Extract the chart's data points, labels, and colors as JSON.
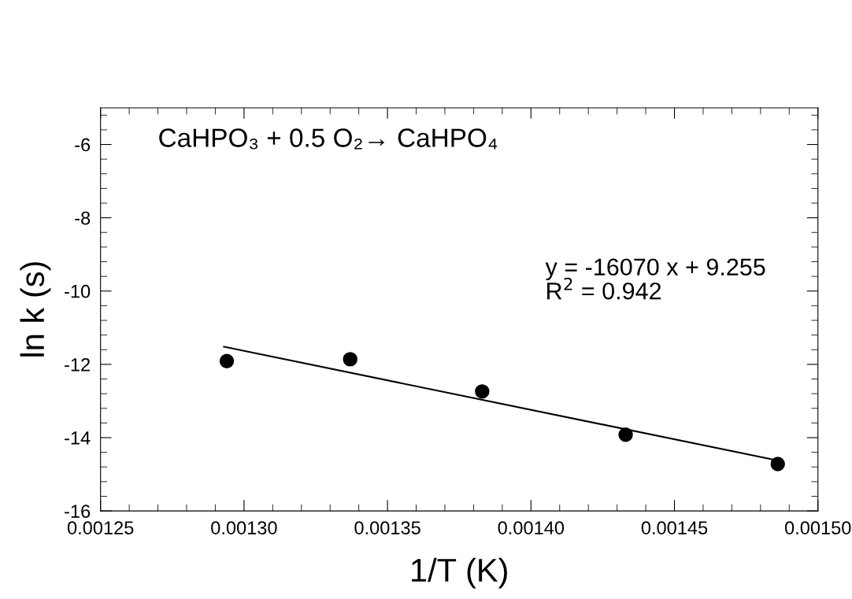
{
  "chart_data": {
    "type": "scatter",
    "xlabel": "1/T (K)",
    "ylabel": "ln k (s)",
    "annotations": [
      "CaHPO₃ + 0.5 O₂→ CaHPO₄",
      "y = -16070 x + 9.255\nR$^{2}$ = 0.942"
    ],
    "series": [
      {
        "color": "#000000",
        "marker": "circle",
        "x": [
          0.001294,
          0.001337,
          0.001383,
          0.001433,
          0.001486
        ],
        "values": [
          -11.91,
          -11.86,
          -12.74,
          -13.92,
          -14.72
        ]
      },
      {
        "type": "line",
        "color": "#000000",
        "marker": "none",
        "line_style": "solid",
        "x": [
          0.001293,
          0.001487
        ],
        "values": [
          -11.52,
          -14.64
        ]
      }
    ],
    "xlim": [
      0.00125,
      0.0015
    ],
    "xticks": [
      {
        "value": 0.00125,
        "label": "0.00125"
      },
      {
        "value": 0.0013,
        "label": "0.00130"
      },
      {
        "value": 0.00135,
        "label": "0.00135"
      },
      {
        "value": 0.0014,
        "label": "0.00140"
      },
      {
        "value": 0.00145,
        "label": "0.00145"
      },
      {
        "value": 0.0015,
        "label": "0.00150"
      }
    ],
    "ylim": [
      -16,
      -5
    ],
    "yticks": [
      -16,
      -14,
      -12,
      -10,
      -8,
      -6
    ],
    "grid": false,
    "legend": false
  }
}
